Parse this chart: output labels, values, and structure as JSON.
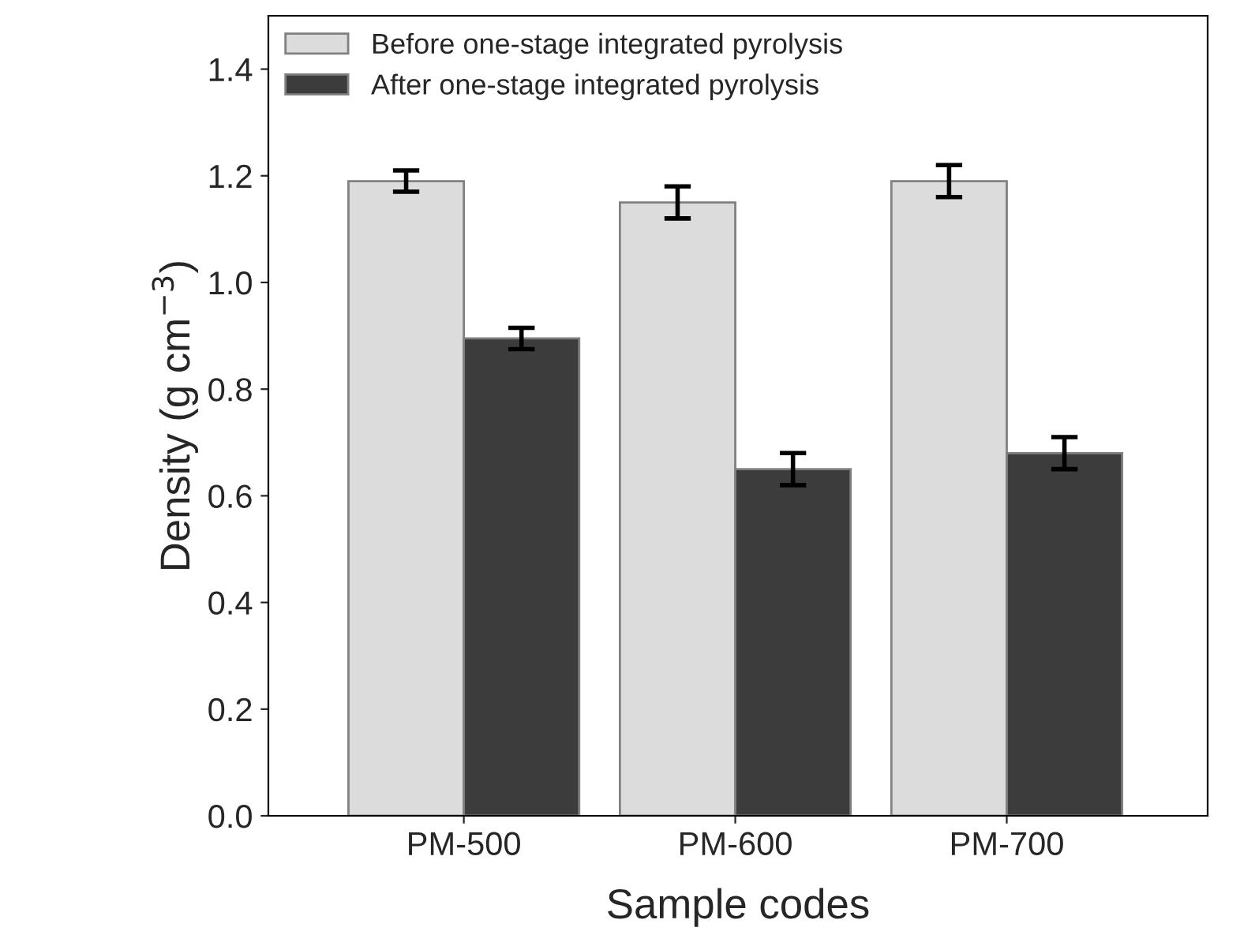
{
  "chart_data": {
    "type": "bar",
    "xlabel": "Sample codes",
    "ylabel": "Density (g cm$^{−3}$)",
    "categories": [
      "PM-500",
      "PM-600",
      "PM-700"
    ],
    "series": [
      {
        "name": "Before one-stage integrated pyrolysis",
        "color": "#dcdcdc",
        "values": [
          1.19,
          1.15,
          1.19
        ],
        "errors": [
          0.02,
          0.03,
          0.03
        ]
      },
      {
        "name": "After one-stage integrated pyrolysis",
        "color": "#3c3c3c",
        "values": [
          0.895,
          0.65,
          0.68
        ],
        "errors": [
          0.02,
          0.03,
          0.03
        ]
      }
    ],
    "ylim": [
      0,
      1.5
    ],
    "yticks": [
      {
        "value": 0,
        "label": "0.0"
      },
      0.2,
      0.4,
      0.6,
      0.8,
      {
        "value": 1,
        "label": "1.0"
      },
      1.2,
      1.4
    ],
    "grid": false,
    "legend": "top left"
  }
}
